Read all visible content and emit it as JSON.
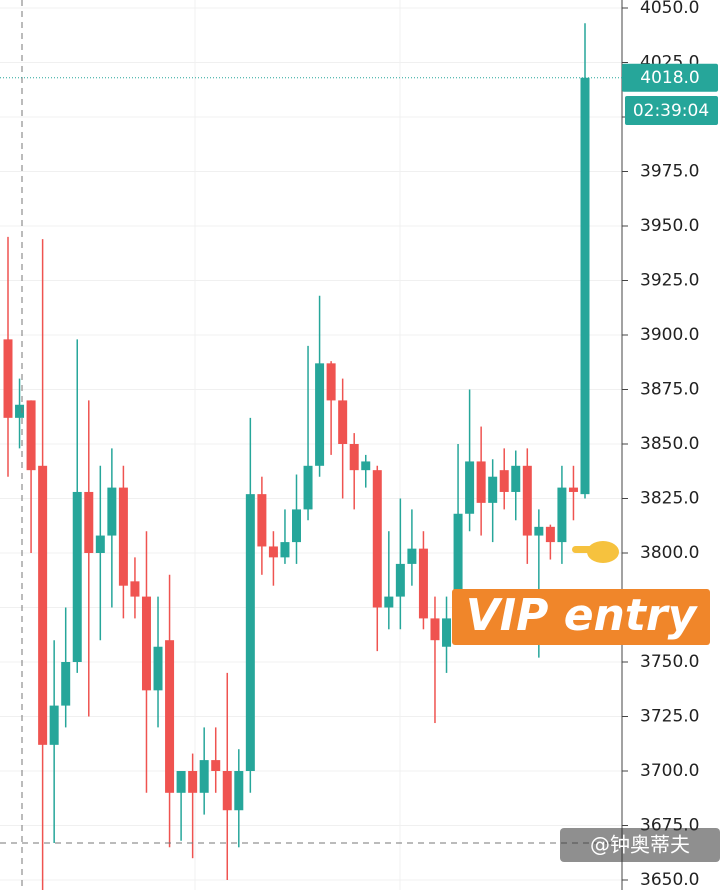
{
  "chart_data": {
    "type": "candlestick",
    "up_color": "#26a69a",
    "down_color": "#ef5350",
    "ylim": [
      3650,
      4050
    ],
    "yticks": [
      {
        "value": 3650,
        "label": "3650.0"
      },
      {
        "value": 3675,
        "label": "3675.0"
      },
      {
        "value": 3700,
        "label": "3700.0"
      },
      {
        "value": 3725,
        "label": "3725.0"
      },
      {
        "value": 3750,
        "label": "3750.0"
      },
      {
        "value": 3775,
        "label": "3775.0"
      },
      {
        "value": 3800,
        "label": "3800.0"
      },
      {
        "value": 3825,
        "label": "3825.0"
      },
      {
        "value": 3850,
        "label": "3850.0"
      },
      {
        "value": 3875,
        "label": "3875.0"
      },
      {
        "value": 3900,
        "label": "3900.0"
      },
      {
        "value": 3925,
        "label": "3925.0"
      },
      {
        "value": 3950,
        "label": "3950.0"
      },
      {
        "value": 3975,
        "label": "3975.0"
      },
      {
        "value": 4000,
        "label": "4000.0"
      },
      {
        "value": 4025,
        "label": "4025.0"
      },
      {
        "value": 4050,
        "label": "4050.0"
      }
    ],
    "grid": true,
    "open": [
      3898,
      3862,
      3870,
      3840,
      3712,
      3730,
      3750,
      3828,
      3800,
      3808,
      3830,
      3787,
      3780,
      3737,
      3760,
      3690,
      3700,
      3690,
      3705,
      3700,
      3682,
      3700,
      3827,
      3803,
      3798,
      3805,
      3820,
      3840,
      3887,
      3870,
      3850,
      3838,
      3838,
      3775,
      3780,
      3795,
      3802,
      3770,
      3757,
      3770,
      3818,
      3842,
      3823,
      3838,
      3828,
      3840,
      3808,
      3812,
      3805,
      3830,
      3827
    ],
    "high": [
      3945,
      3880,
      3870,
      3944,
      3760,
      3775,
      3898,
      3870,
      3840,
      3848,
      3840,
      3798,
      3810,
      3780,
      3790,
      3700,
      3708,
      3720,
      3720,
      3745,
      3710,
      3862,
      3835,
      3810,
      3820,
      3836,
      3895,
      3918,
      3888,
      3880,
      3855,
      3845,
      3840,
      3810,
      3825,
      3820,
      3810,
      3780,
      3780,
      3850,
      3875,
      3858,
      3843,
      3848,
      3847,
      3848,
      3820,
      3813,
      3840,
      3840,
      4043
    ],
    "low": [
      3835,
      3848,
      3800,
      3640,
      3667,
      3720,
      3745,
      3725,
      3760,
      3775,
      3770,
      3770,
      3690,
      3720,
      3665,
      3668,
      3660,
      3680,
      3690,
      3650,
      3665,
      3690,
      3790,
      3785,
      3795,
      3795,
      3815,
      3835,
      3845,
      3825,
      3820,
      3830,
      3755,
      3765,
      3765,
      3785,
      3765,
      3722,
      3745,
      3760,
      3810,
      3808,
      3805,
      3820,
      3815,
      3795,
      3752,
      3797,
      3795,
      3815,
      3825
    ],
    "close": [
      3862,
      3868,
      3838,
      3712,
      3730,
      3750,
      3828,
      3800,
      3808,
      3830,
      3785,
      3780,
      3737,
      3757,
      3690,
      3700,
      3690,
      3705,
      3700,
      3682,
      3700,
      3827,
      3803,
      3798,
      3805,
      3820,
      3840,
      3887,
      3870,
      3850,
      3838,
      3842,
      3775,
      3780,
      3795,
      3802,
      3770,
      3760,
      3770,
      3818,
      3842,
      3823,
      3835,
      3828,
      3840,
      3808,
      3812,
      3805,
      3830,
      3828,
      4018
    ],
    "last_price": {
      "value": 4018,
      "label": "4018.0"
    },
    "countdown": "02:39:04",
    "annotation": "VIP entry",
    "watermark": "@钟奥蒂夫"
  }
}
